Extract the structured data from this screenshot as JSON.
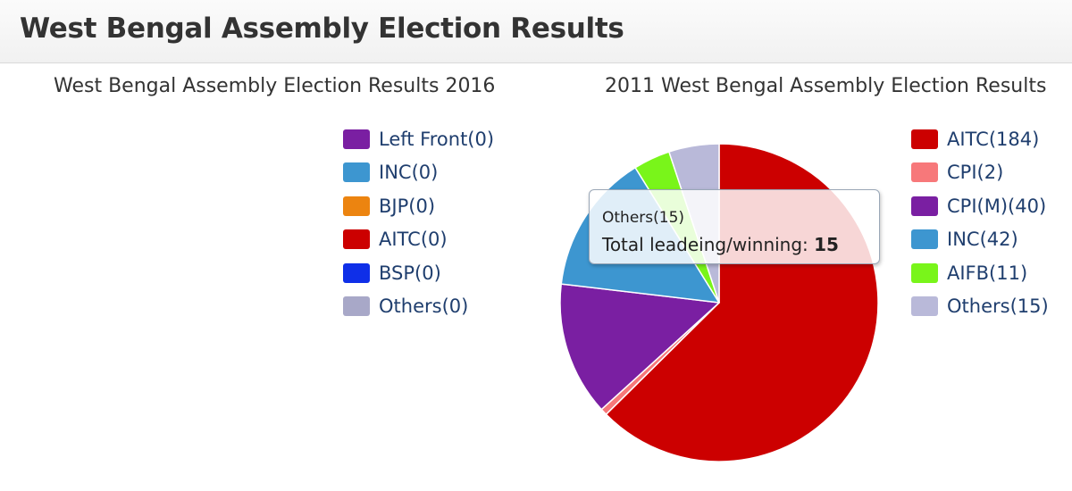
{
  "header": {
    "title": "West Bengal Assembly Election Results"
  },
  "chart_data": [
    {
      "type": "pie",
      "title": "West Bengal Assembly Election Results 2016",
      "legend_position": "right",
      "slices": [
        {
          "label": "Left Front(0)",
          "name": "Left Front",
          "value": 0,
          "color": "#7a1fa2"
        },
        {
          "label": "INC(0)",
          "name": "INC",
          "value": 0,
          "color": "#3d96d0"
        },
        {
          "label": "BJP(0)",
          "name": "BJP",
          "value": 0,
          "color": "#ec8410"
        },
        {
          "label": "AITC(0)",
          "name": "AITC",
          "value": 0,
          "color": "#cc0000"
        },
        {
          "label": "BSP(0)",
          "name": "BSP",
          "value": 0,
          "color": "#0f2fe8"
        },
        {
          "label": "Others(0)",
          "name": "Others",
          "value": 0,
          "color": "#a8a8c8"
        }
      ]
    },
    {
      "type": "pie",
      "title": "2011 West Bengal Assembly Election Results",
      "legend_position": "right",
      "slices": [
        {
          "label": "AITC(184)",
          "name": "AITC",
          "value": 184,
          "color": "#cc0000"
        },
        {
          "label": "CPI(2)",
          "name": "CPI",
          "value": 2,
          "color": "#f7787a"
        },
        {
          "label": "CPI(M)(40)",
          "name": "CPI(M)",
          "value": 40,
          "color": "#7a1fa2"
        },
        {
          "label": "INC(42)",
          "name": "INC",
          "value": 42,
          "color": "#3d96d0"
        },
        {
          "label": "AIFB(11)",
          "name": "AIFB",
          "value": 11,
          "color": "#79f51a"
        },
        {
          "label": "Others(15)",
          "name": "Others",
          "value": 15,
          "color": "#b9b9d9"
        }
      ],
      "tooltip": {
        "header": "Others(15)",
        "label": "Total leadeing/winning: ",
        "value": "15"
      }
    }
  ]
}
